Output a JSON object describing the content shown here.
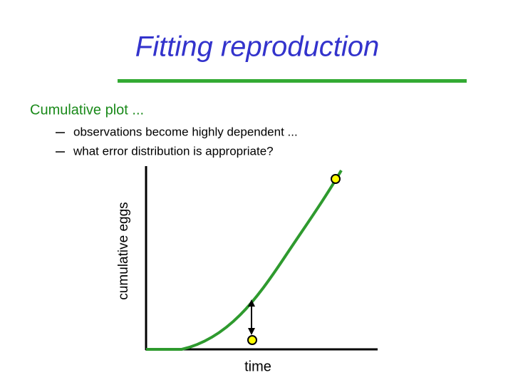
{
  "header": {
    "title": "Fitting reproduction"
  },
  "body": {
    "heading": "Cumulative plot ...",
    "bullets": [
      "observations become highly dependent ...",
      "what error distribution is appropriate?"
    ]
  },
  "figure": {
    "y_label": "cumulative eggs",
    "x_label": "time"
  }
}
